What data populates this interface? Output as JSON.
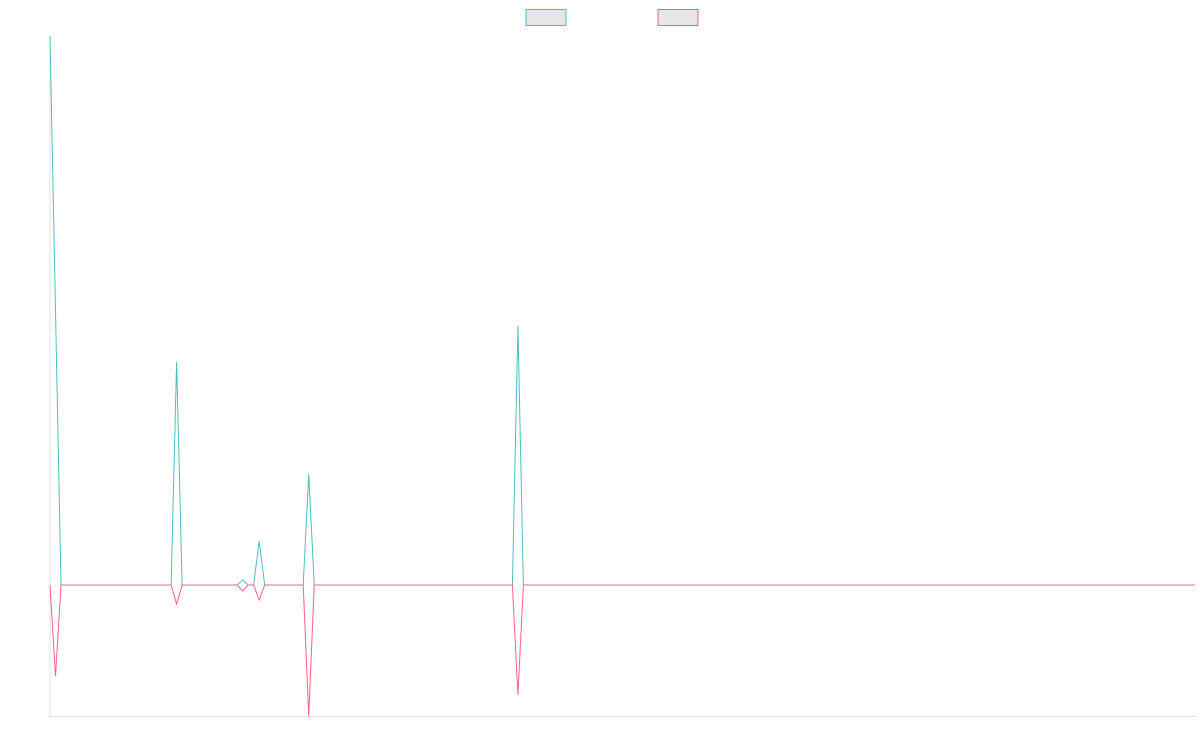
{
  "chart_data": {
    "type": "line",
    "x": [
      0,
      1,
      2,
      22,
      23,
      24,
      34,
      35,
      36,
      37,
      38,
      39,
      46,
      47,
      48,
      84,
      85,
      86,
      208
    ],
    "series": [
      {
        "color": "#4bc0c0",
        "values": [
          549,
          274,
          0,
          0,
          223,
          0,
          0,
          5,
          0,
          0,
          44,
          0,
          0,
          111,
          0,
          0,
          259,
          0,
          0
        ]
      },
      {
        "color": "#ff6384",
        "values": [
          0,
          -91,
          0,
          0,
          -19,
          0,
          0,
          -6,
          0,
          0,
          -15,
          0,
          0,
          -131,
          0,
          0,
          -110,
          0,
          0
        ]
      }
    ],
    "xlim": [
      0,
      208
    ],
    "ylim": [
      -131,
      549
    ]
  }
}
